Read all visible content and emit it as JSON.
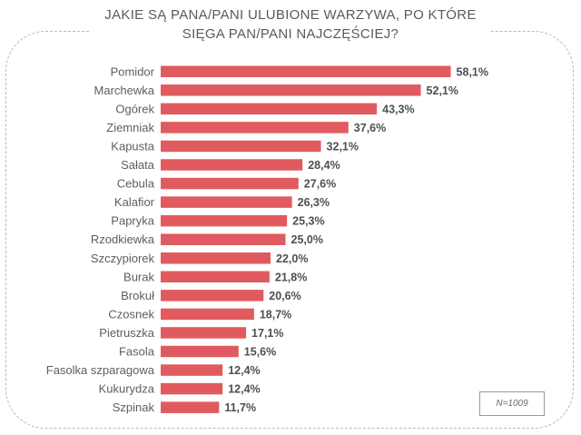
{
  "title_line1": "JAKIE SĄ PANA/PANI ULUBIONE WARZYWA, PO KTÓRE",
  "title_line2": "SIĘGA PAN/PANI NAJCZĘŚCIEJ?",
  "sample_note": "N=1009",
  "bar_color": "#e05b5f",
  "chart_data": {
    "type": "bar",
    "orientation": "horizontal",
    "title": "JAKIE SĄ PANA/PANI ULUBIONE WARZYWA, PO KTÓRE SIĘGA PAN/PANI NAJCZĘŚCIEJ?",
    "categories": [
      "Pomidor",
      "Marchewka",
      "Ogórek",
      "Ziemniak",
      "Kapusta",
      "Sałata",
      "Cebula",
      "Kalafior",
      "Papryka",
      "Rzodkiewka",
      "Szczypiorek",
      "Burak",
      "Brokuł",
      "Czosnek",
      "Pietruszka",
      "Fasola",
      "Fasolka szparagowa",
      "Kukurydza",
      "Szpinak"
    ],
    "values": [
      58.1,
      52.1,
      43.3,
      37.6,
      32.1,
      28.4,
      27.6,
      26.3,
      25.3,
      25.0,
      22.0,
      21.8,
      20.6,
      18.7,
      17.1,
      15.6,
      12.4,
      12.4,
      11.7
    ],
    "value_labels": [
      "58,1%",
      "52,1%",
      "43,3%",
      "37,6%",
      "32,1%",
      "28,4%",
      "27,6%",
      "26,3%",
      "25,3%",
      "25,0%",
      "22,0%",
      "21,8%",
      "20,6%",
      "18,7%",
      "17,1%",
      "15,6%",
      "12,4%",
      "12,4%",
      "11,7%"
    ],
    "unit": "%",
    "xlim": [
      0,
      60
    ],
    "grid": false,
    "legend": false
  }
}
